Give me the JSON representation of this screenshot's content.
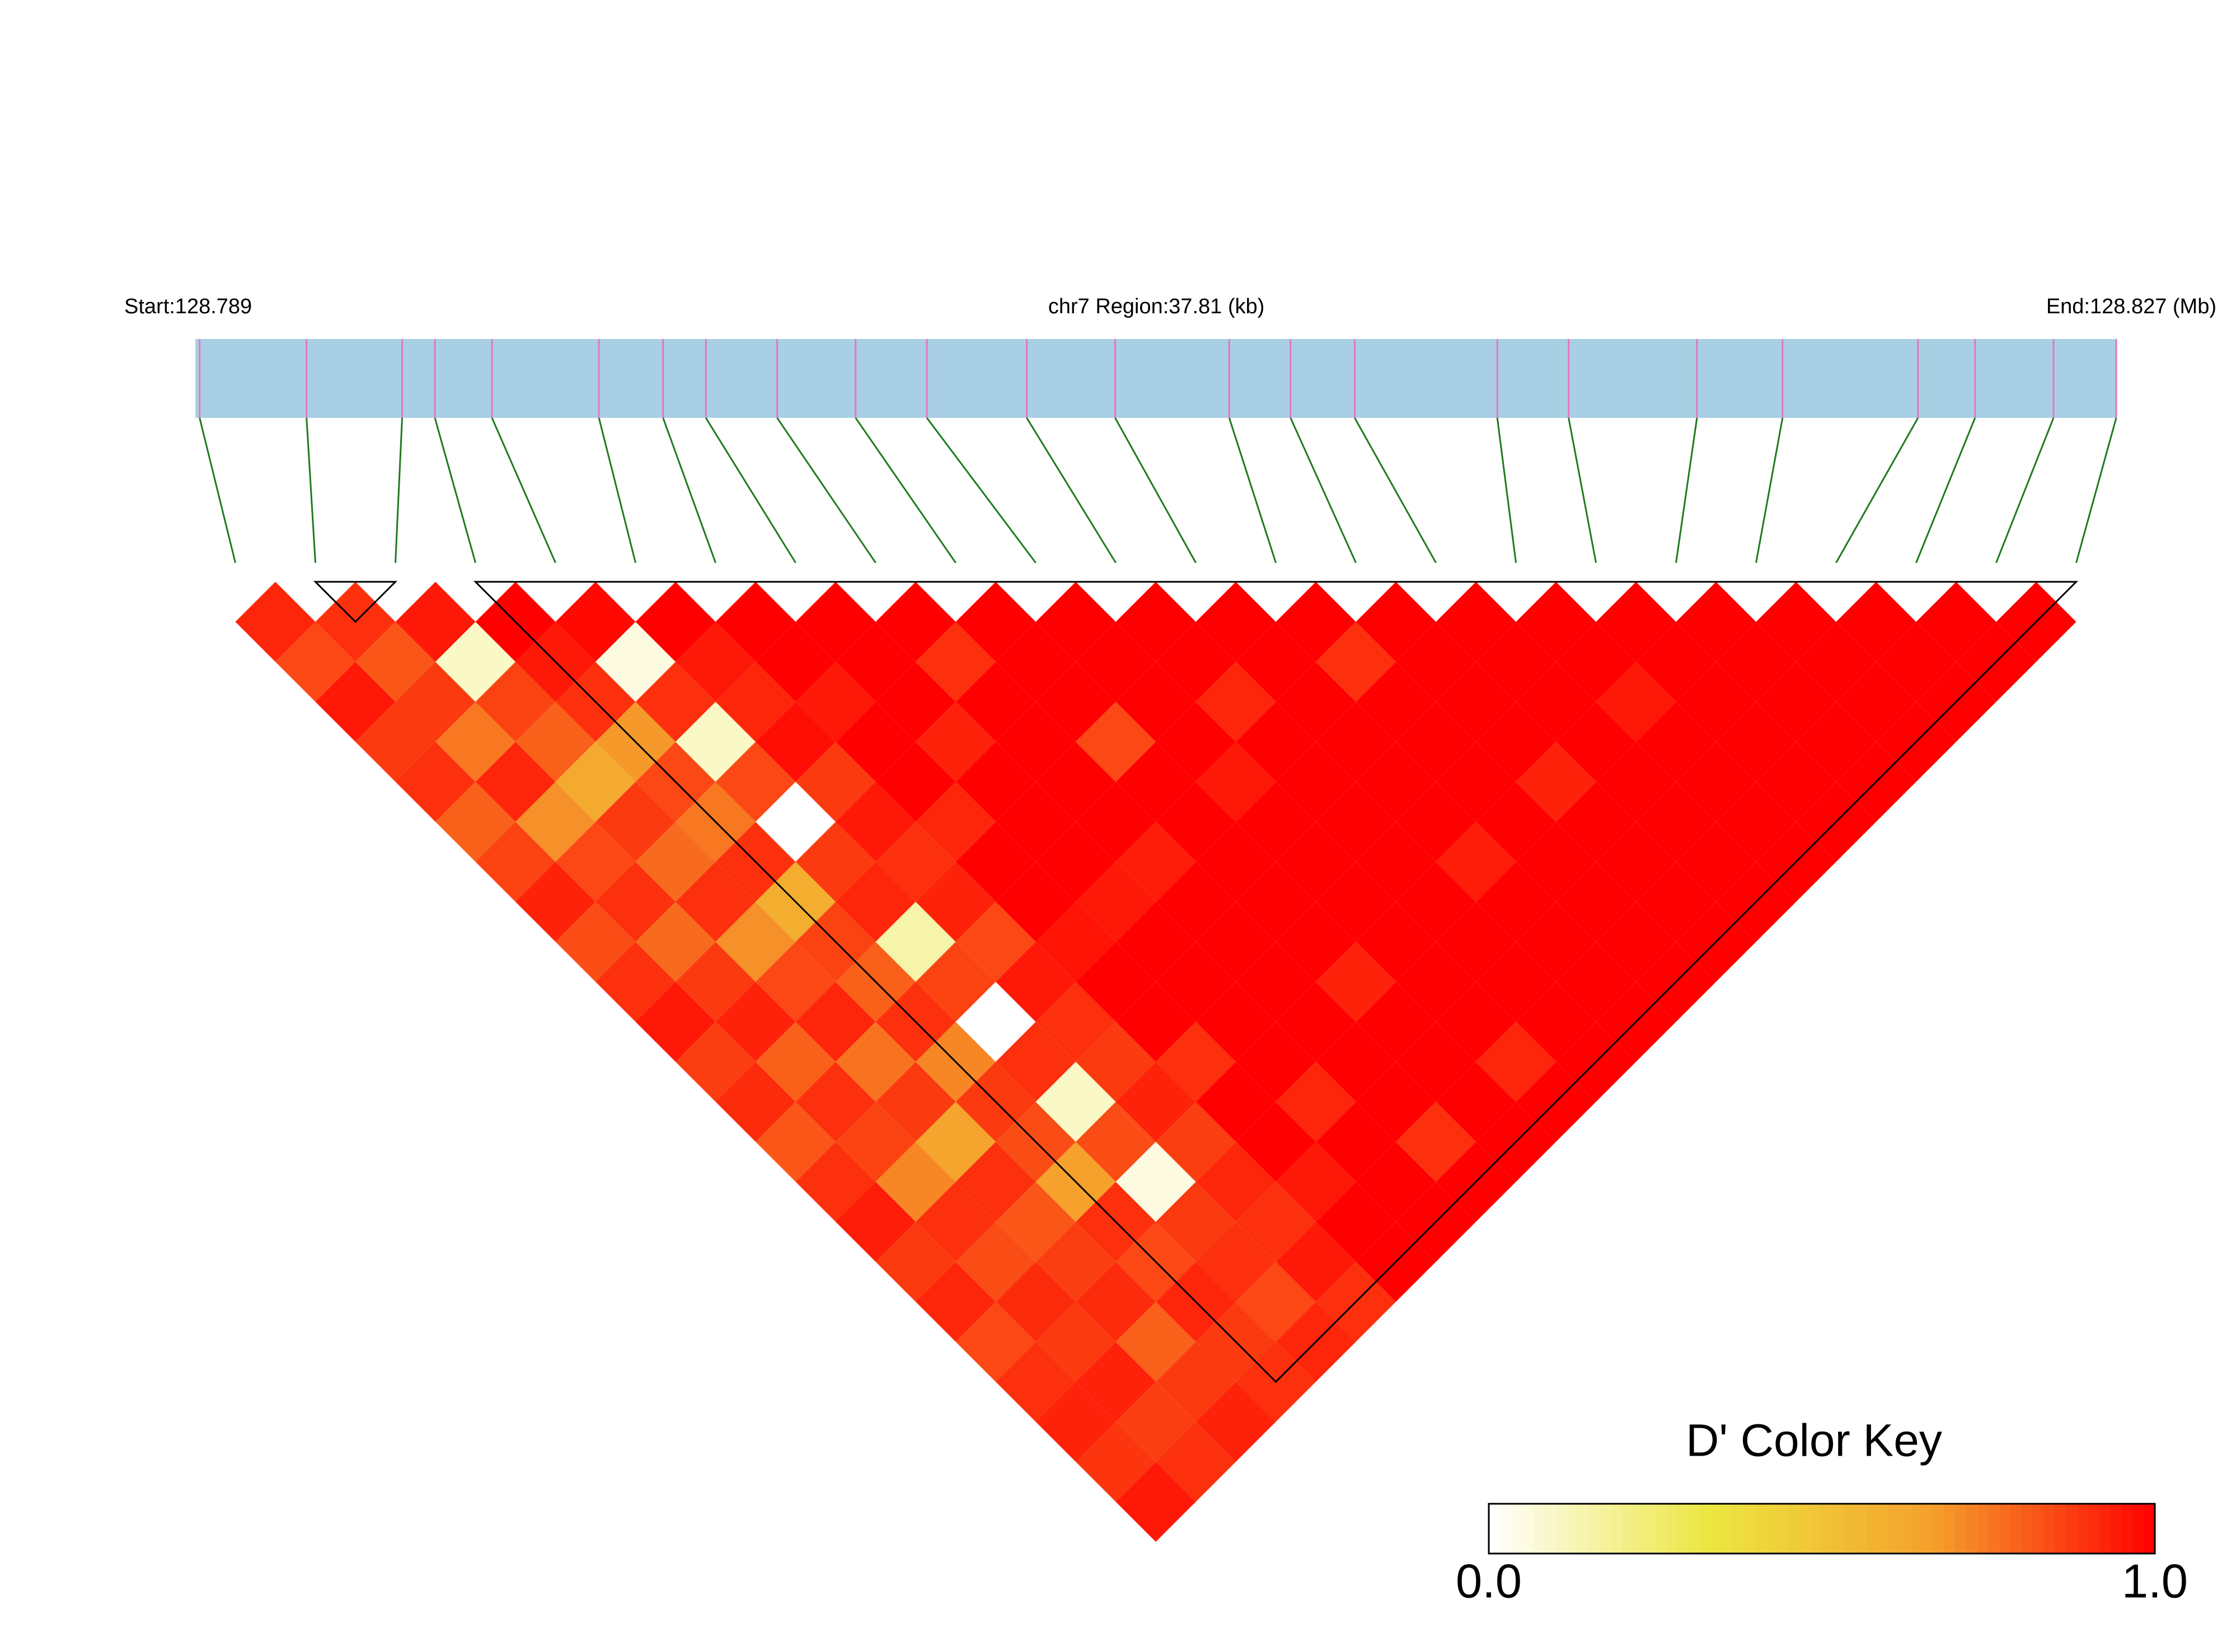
{
  "chart_data": {
    "type": "ld-heatmap",
    "title": "chr7 Region:37.81 (kb)",
    "xlim": [
      128.789,
      128.827
    ],
    "xticks": [
      {
        "value": 128.789,
        "label": "Start:128.789"
      },
      {
        "value": 128.827,
        "label": "End:128.827 (Mb)"
      }
    ],
    "positions": [
      128.789085,
      128.7912,
      128.793091,
      128.793739,
      128.794868,
      128.796984,
      128.798253,
      128.7991,
      128.80051,
      128.802062,
      128.803472,
      128.805447,
      128.807196,
      128.809453,
      128.810666,
      128.811935,
      128.814756,
      128.816167,
      128.818706,
      128.820399,
      128.823078,
      128.824207,
      128.825759,
      128.827
    ],
    "bar_color": "#a8cfe3",
    "snp_line_color": "#e377c2",
    "link_color": "#1f7a1f",
    "colors": [
      "#ffffff",
      "#ece640",
      "#f5a02c",
      "#ff0000"
    ],
    "dprime": [
      [
        0.92,
        0.85,
        0.95,
        0.88,
        0.9,
        0.8,
        0.86,
        0.93,
        0.84,
        0.9,
        0.95,
        0.87,
        0.91,
        0.82,
        0.9,
        0.94,
        0.88,
        0.92,
        0.85,
        0.9,
        0.93,
        0.89,
        0.95
      ],
      [
        0.9,
        0.82,
        0.88,
        0.75,
        0.92,
        0.7,
        0.85,
        0.9,
        0.78,
        0.88,
        0.93,
        0.8,
        0.9,
        0.86,
        0.72,
        0.9,
        0.84,
        0.91,
        0.88,
        0.93,
        0.87,
        0.9
      ],
      [
        0.95,
        0.1,
        0.86,
        0.8,
        0.62,
        0.88,
        0.78,
        0.9,
        0.7,
        0.85,
        0.92,
        0.76,
        0.88,
        0.65,
        0.9,
        0.82,
        0.87,
        0.91,
        0.8,
        0.88,
        0.93
      ],
      [
        1,
        0.95,
        0.9,
        0.68,
        0.85,
        0.75,
        0.9,
        0.6,
        0.86,
        0.8,
        0.9,
        0.72,
        0.88,
        0.84,
        0.66,
        0.9,
        0.85,
        0.92,
        0.88,
        0.9
      ],
      [
        0.98,
        0.05,
        0.9,
        0.1,
        0.85,
        0,
        0.88,
        0.92,
        0.15,
        0.86,
        0,
        0.9,
        0.1,
        0.84,
        0.05,
        0.88,
        0.9,
        0.85,
        0.92
      ],
      [
        1,
        0.95,
        0.92,
        0.97,
        0.88,
        0.95,
        0.9,
        0.93,
        0.85,
        0.95,
        0.9,
        0.88,
        0.93,
        0.87,
        0.92,
        0.9,
        0.95,
        0.9
      ],
      [
        1,
        1,
        0.95,
        1,
        1,
        0.92,
        1,
        1,
        0.96,
        1,
        1,
        0.9,
        1,
        1,
        0.95,
        1,
        1
      ],
      [
        1,
        1,
        1,
        0.93,
        1,
        1,
        1,
        0.95,
        1,
        1,
        1,
        1,
        0.92,
        1,
        1,
        1
      ],
      [
        1,
        0.9,
        1,
        1,
        1,
        1,
        0.94,
        1,
        1,
        1,
        1,
        1,
        1,
        0.9,
        1
      ],
      [
        1,
        1,
        1,
        0.85,
        1,
        1,
        1,
        1,
        1,
        0.93,
        1,
        1,
        1,
        1
      ],
      [
        1,
        1,
        1,
        1,
        0.95,
        1,
        1,
        1,
        1,
        1,
        1,
        0.92,
        1
      ],
      [
        1,
        1,
        0.92,
        1,
        1,
        1,
        1,
        1,
        1,
        1,
        1,
        1
      ],
      [
        1,
        1,
        1,
        1,
        1,
        1,
        0.94,
        1,
        1,
        1,
        1
      ],
      [
        1,
        0.9,
        1,
        1,
        1,
        1,
        1,
        1,
        1,
        1
      ],
      [
        1,
        1,
        1,
        1,
        0.93,
        1,
        1,
        1,
        1
      ],
      [
        1,
        1,
        1,
        1,
        1,
        1,
        1,
        1
      ],
      [
        1,
        1,
        0.95,
        1,
        1,
        1,
        1
      ],
      [
        1,
        1,
        1,
        1,
        1,
        1
      ],
      [
        1,
        1,
        1,
        1,
        1
      ],
      [
        1,
        1,
        1,
        1
      ],
      [
        1,
        1,
        1
      ],
      [
        1,
        1
      ],
      [
        1
      ]
    ],
    "blocks": [
      [
        1,
        2
      ],
      [
        3,
        23
      ]
    ],
    "colorbar": {
      "title": "D' Color Key",
      "xlim": [
        0,
        1
      ],
      "xticks": [
        {
          "value": 0,
          "label": "0.0"
        },
        {
          "value": 1,
          "label": "1.0"
        }
      ]
    }
  }
}
